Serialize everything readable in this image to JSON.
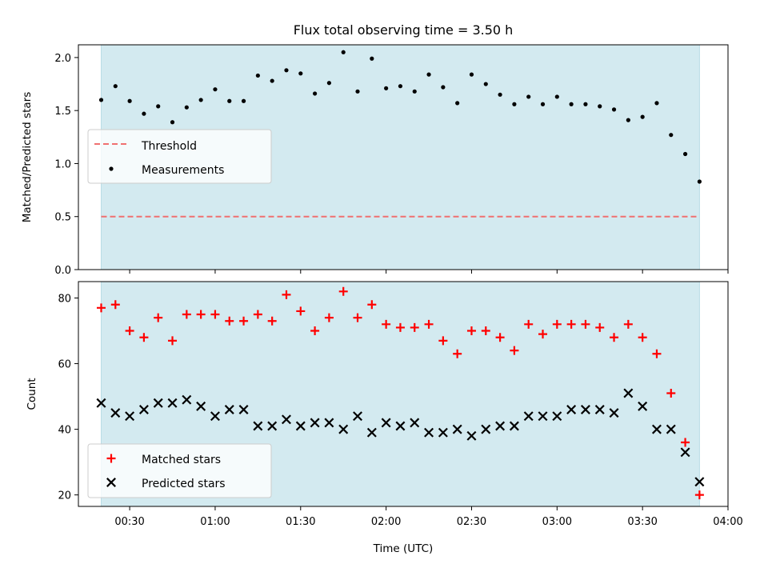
{
  "chart_data": [
    {
      "type": "scatter",
      "title": "Flux total observing time = 3.50 h",
      "ylabel": "Matched/Predicted stars",
      "xlabel": "",
      "xlim": [
        "00:12",
        "04:00"
      ],
      "ylim": [
        0,
        2.12
      ],
      "yticks": [
        "0.0",
        "0.5",
        "1.0",
        "1.5",
        "2.0"
      ],
      "shaded_range": [
        "00:20",
        "03:50"
      ],
      "colors": {
        "shade": "#d3eaf0",
        "threshold": "#f07070",
        "points": "#000000"
      },
      "legend": {
        "placement": "center-left",
        "entries": [
          "Threshold",
          "Measurements"
        ]
      },
      "series": [
        {
          "name": "Threshold",
          "style": "dashed-line",
          "x": [
            "00:20",
            "03:50"
          ],
          "y": [
            0.5,
            0.5
          ]
        },
        {
          "name": "Measurements",
          "style": "dot",
          "x": [
            "00:20",
            "00:25",
            "00:30",
            "00:35",
            "00:40",
            "00:45",
            "00:50",
            "00:55",
            "01:00",
            "01:05",
            "01:10",
            "01:15",
            "01:20",
            "01:25",
            "01:30",
            "01:35",
            "01:40",
            "01:45",
            "01:50",
            "01:55",
            "02:00",
            "02:05",
            "02:10",
            "02:15",
            "02:20",
            "02:25",
            "02:30",
            "02:35",
            "02:40",
            "02:45",
            "02:50",
            "02:55",
            "03:00",
            "03:05",
            "03:10",
            "03:15",
            "03:20",
            "03:25",
            "03:30",
            "03:35",
            "03:40",
            "03:45",
            "03:50"
          ],
          "y": [
            1.6,
            1.73,
            1.59,
            1.47,
            1.54,
            1.39,
            1.53,
            1.6,
            1.7,
            1.59,
            1.59,
            1.83,
            1.78,
            1.88,
            1.85,
            1.66,
            1.76,
            2.05,
            1.68,
            1.99,
            1.71,
            1.73,
            1.68,
            1.84,
            1.72,
            1.57,
            1.84,
            1.75,
            1.65,
            1.56,
            1.63,
            1.56,
            1.63,
            1.56,
            1.56,
            1.54,
            1.51,
            1.41,
            1.44,
            1.57,
            1.27,
            1.09,
            0.83
          ]
        }
      ]
    },
    {
      "type": "scatter",
      "xlabel": "Time (UTC)",
      "ylabel": "Count",
      "xlim": [
        "00:12",
        "04:00"
      ],
      "ylim": [
        16.5,
        85
      ],
      "xticks": [
        "00:30",
        "01:00",
        "01:30",
        "02:00",
        "02:30",
        "03:00",
        "03:30",
        "04:00"
      ],
      "yticks": [
        "20",
        "40",
        "60",
        "80"
      ],
      "shaded_range": [
        "00:20",
        "03:50"
      ],
      "colors": {
        "shade": "#d3eaf0",
        "matched": "#ff0000",
        "predicted": "#000000"
      },
      "legend": {
        "placement": "lower-left",
        "entries": [
          "Matched stars",
          "Predicted stars"
        ]
      },
      "series": [
        {
          "name": "Matched stars",
          "marker": "plus",
          "x": [
            "00:20",
            "00:25",
            "00:30",
            "00:35",
            "00:40",
            "00:45",
            "00:50",
            "00:55",
            "01:00",
            "01:05",
            "01:10",
            "01:15",
            "01:20",
            "01:25",
            "01:30",
            "01:35",
            "01:40",
            "01:45",
            "01:50",
            "01:55",
            "02:00",
            "02:05",
            "02:10",
            "02:15",
            "02:20",
            "02:25",
            "02:30",
            "02:35",
            "02:40",
            "02:45",
            "02:50",
            "02:55",
            "03:00",
            "03:05",
            "03:10",
            "03:15",
            "03:20",
            "03:25",
            "03:30",
            "03:35",
            "03:40",
            "03:45",
            "03:50"
          ],
          "y": [
            77,
            78,
            70,
            68,
            74,
            67,
            75,
            75,
            75,
            73,
            73,
            75,
            73,
            81,
            76,
            70,
            74,
            82,
            74,
            78,
            72,
            71,
            71,
            72,
            67,
            63,
            70,
            70,
            68,
            64,
            72,
            69,
            72,
            72,
            72,
            71,
            68,
            72,
            68,
            63,
            51,
            36,
            20
          ]
        },
        {
          "name": "Predicted stars",
          "marker": "x",
          "x": [
            "00:20",
            "00:25",
            "00:30",
            "00:35",
            "00:40",
            "00:45",
            "00:50",
            "00:55",
            "01:00",
            "01:05",
            "01:10",
            "01:15",
            "01:20",
            "01:25",
            "01:30",
            "01:35",
            "01:40",
            "01:45",
            "01:50",
            "01:55",
            "02:00",
            "02:05",
            "02:10",
            "02:15",
            "02:20",
            "02:25",
            "02:30",
            "02:35",
            "02:40",
            "02:45",
            "02:50",
            "02:55",
            "03:00",
            "03:05",
            "03:10",
            "03:15",
            "03:20",
            "03:25",
            "03:30",
            "03:35",
            "03:40",
            "03:45",
            "03:50"
          ],
          "y": [
            48,
            45,
            44,
            46,
            48,
            48,
            49,
            47,
            44,
            46,
            46,
            41,
            41,
            43,
            41,
            42,
            42,
            40,
            44,
            39,
            42,
            41,
            42,
            39,
            39,
            40,
            38,
            40,
            41,
            41,
            44,
            44,
            44,
            46,
            46,
            46,
            45,
            51,
            47,
            40,
            40,
            33,
            24
          ]
        }
      ]
    }
  ]
}
